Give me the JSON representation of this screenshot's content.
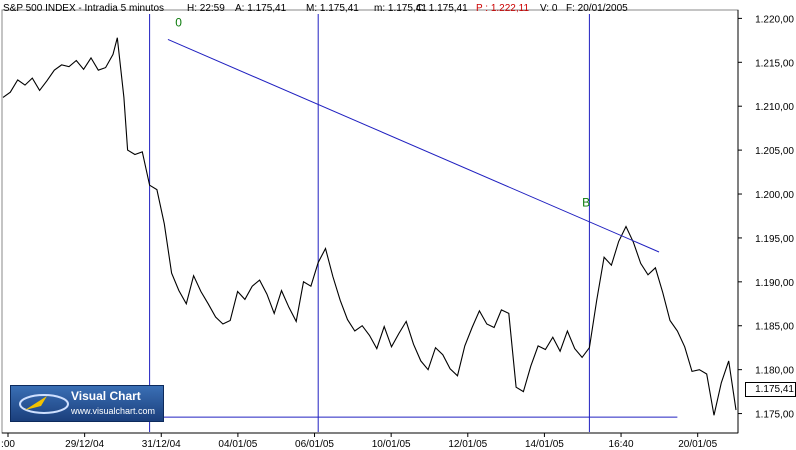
{
  "header": {
    "title": "S&P 500 INDEX - Intradia 5 minutos",
    "high": "H: 22:59",
    "open": "A: 1.175,41",
    "max": "M: 1.175,41",
    "min": "m: 1.175,41",
    "close": "C: 1.175,41",
    "point": "P : 1.222,11",
    "volume": "V: 0",
    "date": "F: 20/01/2005"
  },
  "logo": {
    "name": "Visual Chart",
    "url": "www.visualchart.com"
  },
  "last_price_label": "1.175,41",
  "colors": {
    "up": "#000000",
    "down": "#1a1a8c",
    "line": "#2020c0",
    "annotation": "#0a7a0a",
    "point": "#cc0000"
  },
  "chart_data": {
    "type": "line",
    "x_ticks": [
      ":00",
      "29/12/04",
      "31/12/04",
      "04/01/05",
      "06/01/05",
      "10/01/05",
      "12/01/05",
      "14/01/05",
      "16:40",
      "20/01/05"
    ],
    "y_ticks": [
      "1.220,00",
      "1.215,00",
      "1.210,00",
      "1.205,00",
      "1.200,00",
      "1.195,00",
      "1.190,00",
      "1.185,00",
      "1.180,00",
      "1.175,00"
    ],
    "ylim": [
      1172.9,
      1220.5
    ],
    "xlim": [
      0,
      100
    ],
    "series": [
      {
        "x": [
          0,
          1,
          2,
          3,
          4,
          5,
          6,
          7,
          8,
          9,
          10,
          11,
          12,
          13,
          14,
          15,
          15.6,
          16.5,
          17,
          18,
          19,
          20,
          21,
          22,
          23,
          24,
          25,
          26,
          27,
          28,
          29,
          30,
          31,
          32,
          33,
          34,
          35,
          36,
          37,
          38,
          39,
          40,
          41,
          42,
          43,
          44,
          45,
          46,
          47,
          48,
          49,
          50,
          51,
          52,
          53,
          54,
          55,
          56,
          57,
          58,
          59,
          60,
          61,
          62,
          63,
          64,
          65,
          66,
          67,
          68,
          69,
          70,
          71,
          72,
          73,
          74,
          75,
          76,
          77,
          78,
          79,
          80,
          81,
          82,
          83,
          84,
          85,
          86,
          87,
          88,
          89,
          90,
          91,
          92,
          93,
          94,
          95,
          96,
          97,
          98,
          99,
          100
        ],
        "y": [
          1211.0,
          1211.6,
          1213.0,
          1212.4,
          1213.2,
          1211.8,
          1212.9,
          1214.1,
          1214.7,
          1214.5,
          1215.2,
          1214.2,
          1215.5,
          1214.1,
          1214.4,
          1215.9,
          1217.8,
          1211.0,
          1205.0,
          1204.5,
          1204.8,
          1201.0,
          1200.5,
          1196.6,
          1191.0,
          1189.0,
          1187.5,
          1190.7,
          1188.9,
          1187.5,
          1186.0,
          1185.2,
          1185.6,
          1188.9,
          1188.0,
          1189.5,
          1190.2,
          1188.6,
          1186.4,
          1189.0,
          1187.1,
          1185.5,
          1190.0,
          1189.5,
          1192.2,
          1193.8,
          1190.6,
          1187.9,
          1185.7,
          1184.4,
          1185.0,
          1183.9,
          1182.4,
          1184.9,
          1182.6,
          1184.1,
          1185.5,
          1182.9,
          1181.0,
          1180.0,
          1182.5,
          1181.7,
          1180.1,
          1179.3,
          1182.7,
          1184.8,
          1186.7,
          1185.2,
          1184.8,
          1186.8,
          1186.4,
          1178.0,
          1177.5,
          1180.4,
          1182.7,
          1182.3,
          1183.7,
          1182.1,
          1184.4,
          1182.4,
          1181.4,
          1182.5,
          1187.9,
          1192.8,
          1191.9,
          1194.6,
          1196.3,
          1194.5,
          1192.1,
          1190.8,
          1191.6,
          1188.8,
          1185.6,
          1184.4,
          1182.6,
          1179.8,
          1180.0,
          1179.5,
          1174.8,
          1178.5,
          1181.0,
          1175.4
        ]
      }
    ],
    "trendline": {
      "x": [
        22.5,
        89.5
      ],
      "y": [
        1217.6,
        1193.4
      ]
    },
    "support": {
      "x": [
        20,
        92
      ],
      "y": [
        1174.6,
        1174.6
      ]
    },
    "vlines": [
      20,
      43,
      80
    ],
    "labels": [
      {
        "text": "0",
        "x": 23.5,
        "y": 1219.1
      },
      {
        "text": "B",
        "x": 79,
        "y": 1198.6
      }
    ]
  }
}
